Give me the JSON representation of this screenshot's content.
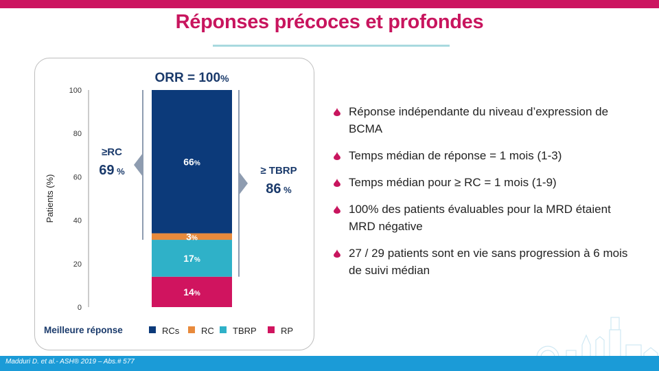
{
  "slide": {
    "title": "Réponses précoces et profondes",
    "footer": "Madduri D. et al.- ASH® 2019 – Abs.# 577"
  },
  "bullets": [
    "Réponse indépendante du niveau d’expression de BCMA",
    "Temps médian de réponse = 1 mois (1-3)",
    "Temps médian pour  ≥ RC = 1 mois (1-9)",
    "100% des patients évaluables pour la MRD étaient MRD négative",
    "27 / 29 patients sont en vie sans progression à 6 mois de suivi médian"
  ],
  "chart_data": {
    "type": "bar",
    "stacked": true,
    "title": "ORR = 100%",
    "title_parts": {
      "main": "ORR = 100",
      "unit": "%"
    },
    "ylabel": "Patients (%)",
    "ylim": [
      0,
      100
    ],
    "yticks": [
      0,
      20,
      40,
      60,
      80,
      100
    ],
    "grid": false,
    "legend_position": "bottom",
    "legend_title": "Meilleure réponse",
    "series": [
      {
        "name": "RP",
        "value": 14,
        "label": "14",
        "unit": "%",
        "color": "#d0145f"
      },
      {
        "name": "TBRP",
        "value": 17,
        "label": "17",
        "unit": "%",
        "color": "#2fb1c8"
      },
      {
        "name": "RC",
        "value": 3,
        "label": "3",
        "unit": "%",
        "color": "#e88a3c"
      },
      {
        "name": "RCs",
        "value": 66,
        "label": "66",
        "unit": "%",
        "color": "#0c3a7a"
      }
    ],
    "legend_order": [
      "RCs",
      "RC",
      "TBRP",
      "RP"
    ],
    "annotations": [
      {
        "label": "≥RC",
        "value": "69",
        "unit": "%",
        "from": 31,
        "to": 100,
        "side": "left"
      },
      {
        "label": "≥ TBRP",
        "value": "86",
        "unit": "%",
        "from": 14,
        "to": 100,
        "side": "right"
      }
    ]
  },
  "colors": {
    "accent": "#c8155e",
    "footer": "#1b9bd7",
    "underline": "#a8d9df",
    "annotation_text": "#1a3a6b",
    "arrow": "#8e9cb0"
  }
}
